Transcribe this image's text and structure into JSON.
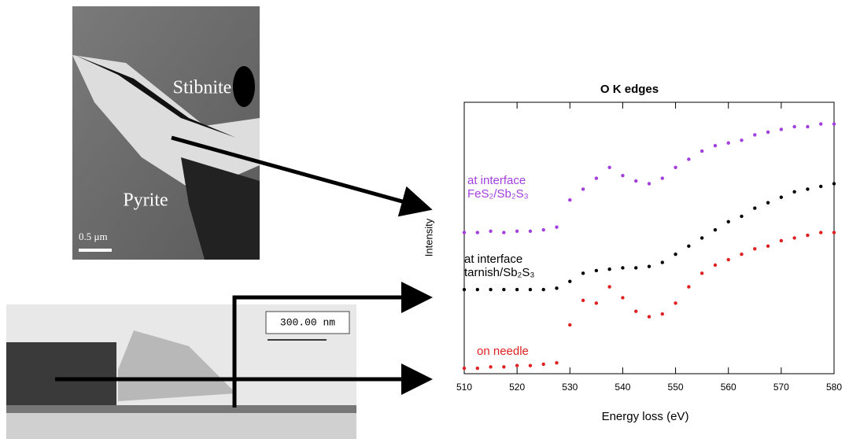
{
  "images": {
    "top": {
      "labels": [
        "Stibnite",
        "Pyrite"
      ],
      "scale_bar": "0.5 μm"
    },
    "bottom": {
      "scale_bar": "300.00 nm"
    }
  },
  "chart_data": {
    "type": "scatter",
    "title": "O K edges",
    "x_label": "Energy loss (eV)",
    "y_label": "Intensity",
    "xlim": [
      510,
      580
    ],
    "xticks": [
      510,
      520,
      530,
      540,
      550,
      560,
      570,
      580
    ],
    "ylim": [
      0,
      100
    ],
    "x": [
      510,
      512.5,
      515,
      517.5,
      520,
      522.5,
      525,
      527.5,
      530,
      532.5,
      535,
      537.5,
      540,
      542.5,
      545,
      547.5,
      550,
      552.5,
      555,
      557.5,
      560,
      562.5,
      565,
      567.5,
      570,
      572.5,
      575,
      577.5,
      580
    ],
    "series": [
      {
        "label": [
          "at interface",
          "FeS₂/Sb₂S₃"
        ],
        "color": "#a23ee0",
        "values": [
          52,
          52,
          52.5,
          52,
          52.5,
          52.5,
          53,
          54,
          64,
          68,
          72,
          76,
          73,
          71,
          70,
          72,
          76,
          79,
          82,
          84,
          85,
          86,
          88,
          89,
          90,
          91,
          91,
          92,
          92
        ]
      },
      {
        "label": [
          "at interface",
          "tarnish/Sb₂S₃"
        ],
        "color": "#000000",
        "values": [
          31,
          31,
          31,
          31,
          31,
          31,
          31,
          31.5,
          34,
          37,
          38,
          38.5,
          39,
          39,
          39.5,
          41,
          44,
          47,
          50,
          53,
          56,
          58,
          61,
          63,
          65,
          67,
          68,
          69,
          70
        ]
      },
      {
        "label": [
          "on needle"
        ],
        "color": "#e02020",
        "values": [
          2,
          2,
          2.5,
          2.5,
          3,
          3,
          3.5,
          4,
          18,
          27,
          26,
          32,
          28,
          23,
          21,
          22,
          26,
          32,
          37,
          40,
          42,
          44,
          46,
          47,
          49,
          50,
          51,
          52,
          52
        ]
      }
    ]
  }
}
